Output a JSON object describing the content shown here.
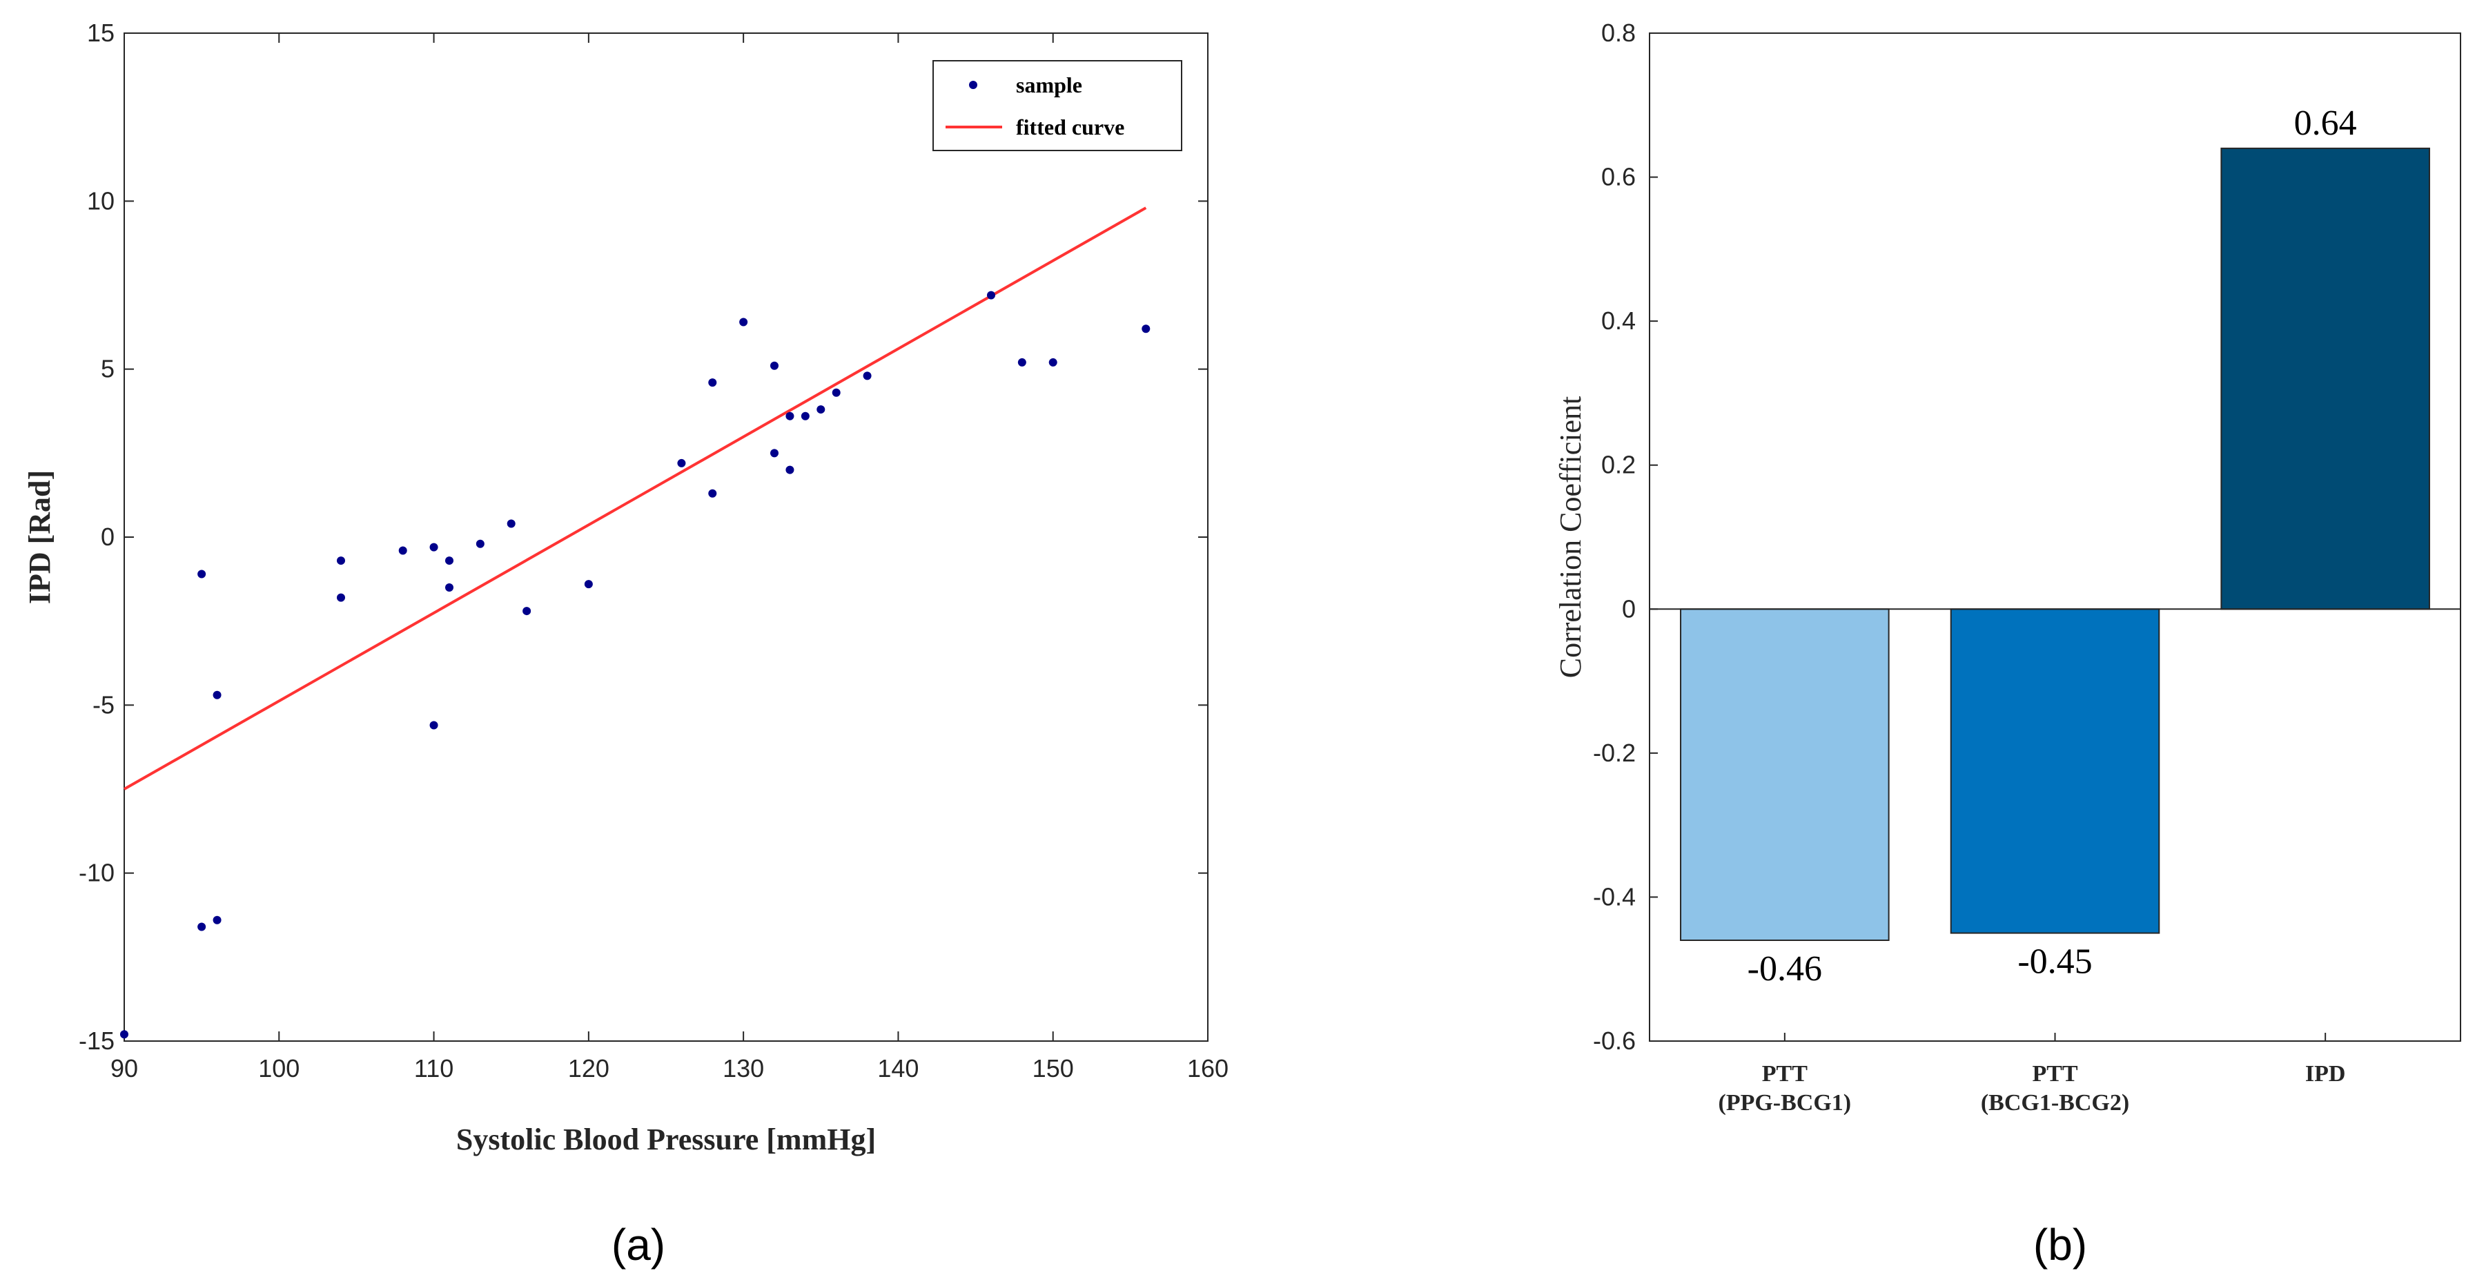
{
  "chart_data": [
    {
      "type": "scatter",
      "panel_label": "(a)",
      "xlabel": "Systolic Blood Pressure [mmHg]",
      "ylabel": "IPD [Rad]",
      "xlim": [
        90,
        160
      ],
      "ylim": [
        -15,
        15
      ],
      "xticks": [
        "90",
        "100",
        "110",
        "120",
        "130",
        "140",
        "150",
        "160"
      ],
      "yticks": [
        "15",
        "10",
        "5",
        "0",
        "-5",
        "-10",
        "-15"
      ],
      "legend": {
        "placement": "top-right",
        "entries": [
          "sample",
          "fitted curve"
        ]
      },
      "series": [
        {
          "name": "sample",
          "color": "#00008b",
          "points": [
            [
              90,
              -14.8
            ],
            [
              95,
              -1.1
            ],
            [
              95,
              -11.6
            ],
            [
              96,
              -4.7
            ],
            [
              96,
              -11.4
            ],
            [
              104,
              -0.7
            ],
            [
              104,
              -1.8
            ],
            [
              108,
              -0.4
            ],
            [
              110,
              -0.3
            ],
            [
              110,
              -5.6
            ],
            [
              111,
              -0.7
            ],
            [
              111,
              -1.5
            ],
            [
              113,
              -0.2
            ],
            [
              115,
              0.4
            ],
            [
              116,
              -2.2
            ],
            [
              120,
              -1.4
            ],
            [
              126,
              2.2
            ],
            [
              128,
              4.6
            ],
            [
              128,
              1.3
            ],
            [
              130,
              6.4
            ],
            [
              132,
              5.1
            ],
            [
              132,
              2.5
            ],
            [
              133,
              3.6
            ],
            [
              133,
              2.0
            ],
            [
              134,
              3.6
            ],
            [
              135,
              3.8
            ],
            [
              136,
              4.3
            ],
            [
              138,
              4.8
            ],
            [
              146,
              7.2
            ],
            [
              148,
              5.2
            ],
            [
              150,
              5.2
            ],
            [
              156,
              6.2
            ]
          ]
        },
        {
          "name": "fitted curve",
          "color": "#ff3333",
          "line": [
            [
              90,
              -7.5
            ],
            [
              156,
              9.8
            ]
          ]
        }
      ]
    },
    {
      "type": "bar",
      "panel_label": "(b)",
      "ylabel": "Correlation Coefficient",
      "ylim": [
        -0.6,
        0.8
      ],
      "yticks": [
        "0.8",
        "0.6",
        "0.4",
        "0.2",
        "0",
        "-0.2",
        "-0.4",
        "-0.6"
      ],
      "categories": [
        [
          "PTT",
          "(PPG-BCG1)"
        ],
        [
          "PTT",
          "(BCG1-BCG2)"
        ],
        [
          "IPD"
        ]
      ],
      "values": [
        -0.46,
        -0.45,
        0.64
      ],
      "value_labels": [
        "-0.46",
        "-0.45",
        "0.64"
      ],
      "colors": [
        "#8ec3e8",
        "#0072bd",
        "#004b74"
      ]
    }
  ]
}
